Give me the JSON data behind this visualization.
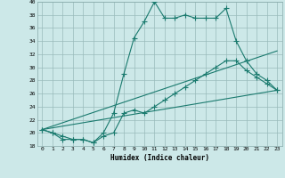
{
  "xlabel": "Humidex (Indice chaleur)",
  "xlim": [
    -0.5,
    23.5
  ],
  "ylim": [
    18,
    40
  ],
  "yticks": [
    18,
    20,
    22,
    24,
    26,
    28,
    30,
    32,
    34,
    36,
    38,
    40
  ],
  "xticks": [
    0,
    1,
    2,
    3,
    4,
    5,
    6,
    7,
    8,
    9,
    10,
    11,
    12,
    13,
    14,
    15,
    16,
    17,
    18,
    19,
    20,
    21,
    22,
    23
  ],
  "bg_color": "#cce8e8",
  "line_color": "#1a7a6e",
  "grid_color": "#99bbbb",
  "line_width": 0.8,
  "series1_x": [
    0,
    1,
    2,
    3,
    4,
    5,
    6,
    7,
    8,
    9,
    10,
    11,
    12,
    13,
    14,
    15,
    16,
    17,
    18,
    19,
    20,
    21,
    22,
    23
  ],
  "series1_y": [
    20.5,
    20.0,
    19.5,
    19.0,
    19.0,
    18.5,
    20.0,
    23.0,
    29.0,
    34.5,
    37.0,
    40.0,
    37.5,
    37.5,
    38.0,
    37.5,
    37.5,
    37.5,
    39.0,
    34.0,
    31.0,
    29.0,
    28.0,
    26.5
  ],
  "series2_x": [
    0,
    1,
    2,
    3,
    4,
    5,
    6,
    7,
    8,
    9,
    10,
    11,
    12,
    13,
    14,
    15,
    16,
    17,
    18,
    19,
    20,
    21,
    22,
    23
  ],
  "series2_y": [
    20.5,
    20.0,
    19.0,
    19.0,
    19.0,
    18.5,
    19.5,
    20.0,
    23.0,
    23.5,
    23.0,
    24.0,
    25.0,
    26.0,
    27.0,
    28.0,
    29.0,
    30.0,
    31.0,
    31.0,
    29.5,
    28.5,
    27.5,
    26.5
  ],
  "series3_x": [
    0,
    23
  ],
  "series3_y": [
    20.5,
    32.5
  ],
  "series4_x": [
    0,
    23
  ],
  "series4_y": [
    20.5,
    26.5
  ]
}
